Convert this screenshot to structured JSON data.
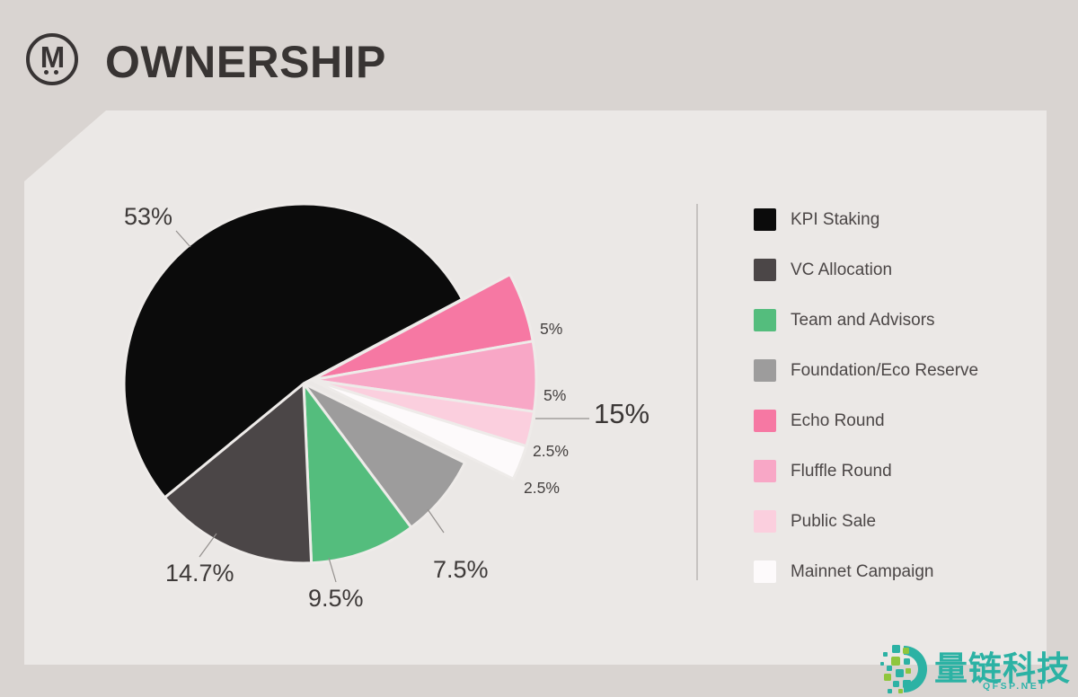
{
  "header": {
    "title": "OWNERSHIP",
    "logo_letter": "M"
  },
  "chart_data": {
    "type": "pie",
    "title": "OWNERSHIP",
    "legend_position": "right",
    "slices": [
      {
        "label": "KPI Staking",
        "value": 53,
        "display": "53%",
        "color": "#0b0b0b",
        "exploded": false
      },
      {
        "label": "VC Allocation",
        "value": 14.7,
        "display": "14.7%",
        "color": "#4b4647",
        "exploded": false
      },
      {
        "label": "Team and Advisors",
        "value": 9.5,
        "display": "9.5%",
        "color": "#54bd7d",
        "exploded": false
      },
      {
        "label": "Foundation/Eco Reserve",
        "value": 7.5,
        "display": "7.5%",
        "color": "#9d9c9c",
        "exploded": false
      },
      {
        "label": "Echo Round",
        "value": 5,
        "display": "5%",
        "color": "#f678a3",
        "exploded": true
      },
      {
        "label": "Fluffle Round",
        "value": 5,
        "display": "5%",
        "color": "#f8a7c6",
        "exploded": true
      },
      {
        "label": "Public Sale",
        "value": 2.5,
        "display": "2.5%",
        "color": "#fbcfde",
        "exploded": true
      },
      {
        "label": "Mainnet Campaign",
        "value": 2.5,
        "display": "2.5%",
        "color": "#fdfafb",
        "exploded": true
      }
    ],
    "group_callout": {
      "display": "15%",
      "value": 15,
      "members": [
        "Echo Round",
        "Fluffle Round",
        "Public Sale",
        "Mainnet Campaign"
      ]
    }
  },
  "watermark": {
    "brand": "量链科技",
    "domain": "QFSP.NET",
    "teal": "#2cb2a4",
    "green": "#8fc63d"
  }
}
